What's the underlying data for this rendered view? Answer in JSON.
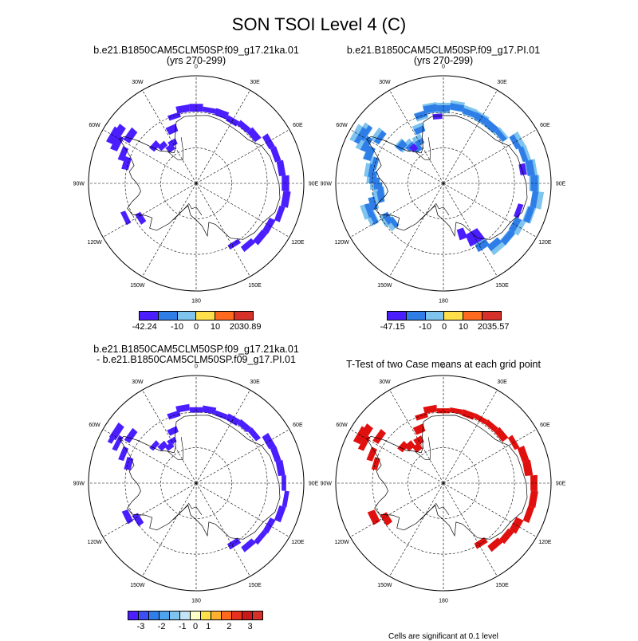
{
  "title": "SON TSOI Level 4 (C)",
  "lon_labels": [
    "0",
    "30E",
    "60E",
    "90E",
    "120E",
    "150E",
    "180",
    "150W",
    "120W",
    "90W",
    "60W",
    "30W"
  ],
  "colors": {
    "land_outline": "#000000",
    "scale_main": [
      "#4a1eff",
      "#2f7ee8",
      "#7fc4ee",
      "#ffe04a",
      "#ff6a1e",
      "#d6302a"
    ],
    "scale_diff": [
      "#4a1eff",
      "#3b4ff2",
      "#2f7ee8",
      "#4ea3ee",
      "#7fc4ee",
      "#c2e4f4",
      "#ffffc8",
      "#ffe04a",
      "#ffb030",
      "#ff6a1e",
      "#e8301e",
      "#c81818",
      "#d6302a"
    ],
    "ttest": "#e0100e",
    "cool": "#4a1eff",
    "mid_blue": "#2f7ee8",
    "light_blue": "#7fc4ee"
  },
  "panels": [
    {
      "title_line1": "b.e21.B1850CAM5CLM50SP.f09_g17.21ka.01",
      "title_line2": "(yrs 270-299)",
      "cbar": {
        "labels": [
          "-42.24",
          "-10",
          "0",
          "10",
          "20",
          "30.89"
        ]
      }
    },
    {
      "title_line1": "b.e21.B1850CAM5CLM50SP.f09_g17.PI.01",
      "title_line2": "(yrs 270-299)",
      "cbar": {
        "labels": [
          "-47.15",
          "-10",
          "0",
          "10",
          "20",
          "35.57"
        ]
      }
    },
    {
      "title_line1": "b.e21.B1850CAM5CLM50SP.f09_g17.21ka.01",
      "title_line2": "- b.e21.B1850CAM5CLM50SP.f09_g17.PI.01",
      "cbar": {
        "labels": [
          "-3",
          "-2",
          "-1",
          "0",
          "1",
          "2",
          "3"
        ]
      }
    },
    {
      "title_line1": "T-Test of two Case means at each grid point",
      "title_line2": "",
      "note": "Cells are significant at 0.1 level"
    }
  ]
}
